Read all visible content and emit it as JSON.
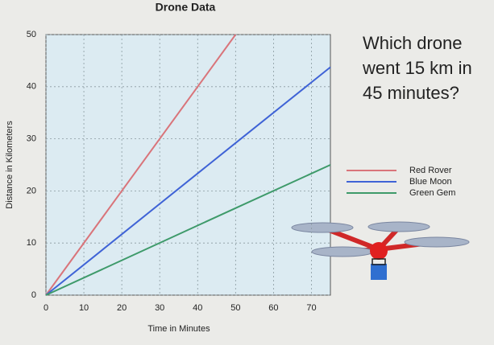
{
  "chart_data": {
    "type": "line",
    "title": "Drone Data",
    "annotation": [
      "Which drone",
      "went 15 km in",
      "45 minutes?"
    ],
    "x_label": "Time in Minutes",
    "y_label": "Distance in Kilometers",
    "x": [
      0,
      50,
      75
    ],
    "series": [
      {
        "name": "Red Rover",
        "color": "#d9747a",
        "values": [
          0,
          50,
          null
        ]
      },
      {
        "name": "Blue Moon",
        "color": "#3f63d6",
        "values": [
          0,
          29.2,
          43.75
        ]
      },
      {
        "name": "Green Gem",
        "color": "#3e9a6a",
        "values": [
          0,
          16.7,
          25
        ]
      }
    ],
    "xlim": [
      0,
      75
    ],
    "ylim": [
      0,
      50
    ],
    "xticks": [
      0,
      10,
      20,
      30,
      40,
      50,
      60,
      70
    ],
    "yticks": [
      0,
      10,
      20,
      30,
      40,
      50
    ],
    "grid": true
  }
}
